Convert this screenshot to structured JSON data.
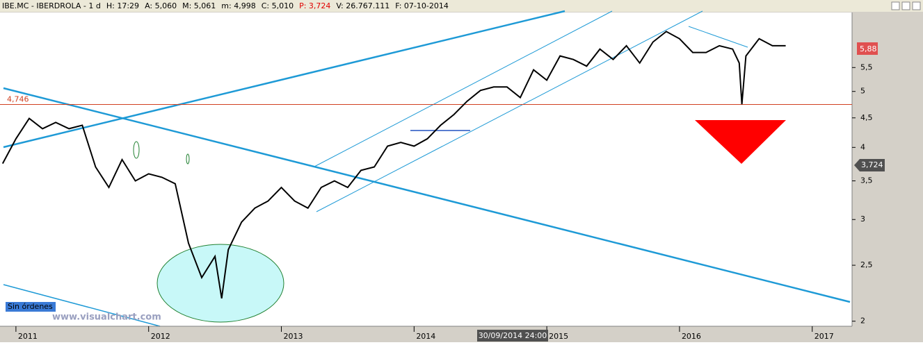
{
  "chart_data": {
    "type": "line",
    "header": [
      "IBE.MC - IBERDROLA - 1 d",
      "H: 17:29",
      "A: 5,060",
      "M: 5,061",
      "m: 4,998",
      "C: 5,010",
      "P: 3,724",
      "V: 26.767.111",
      "F: 07-10-2014"
    ],
    "x": [
      2010.9,
      2011.0,
      2011.1,
      2011.2,
      2011.3,
      2011.4,
      2011.5,
      2011.6,
      2011.7,
      2011.8,
      2011.9,
      2012.0,
      2012.1,
      2012.2,
      2012.3,
      2012.4,
      2012.5,
      2012.55,
      2012.6,
      2012.7,
      2012.8,
      2012.9,
      2013.0,
      2013.1,
      2013.2,
      2013.3,
      2013.4,
      2013.5,
      2013.6,
      2013.7,
      2013.8,
      2013.9,
      2014.0,
      2014.1,
      2014.2,
      2014.3,
      2014.4,
      2014.5,
      2014.6,
      2014.7,
      2014.8,
      2014.9,
      2015.0,
      2015.1,
      2015.2,
      2015.3,
      2015.4,
      2015.5,
      2015.6,
      2015.7,
      2015.8,
      2015.9,
      2016.0,
      2016.1,
      2016.2,
      2016.3,
      2016.4,
      2016.45,
      2016.47,
      2016.5,
      2016.6,
      2016.7,
      2016.8
    ],
    "values": [
      3.75,
      4.14,
      4.49,
      4.31,
      4.42,
      4.31,
      4.37,
      3.7,
      3.41,
      3.81,
      3.5,
      3.6,
      3.55,
      3.46,
      2.73,
      2.38,
      2.59,
      2.19,
      2.66,
      2.97,
      3.14,
      3.23,
      3.41,
      3.23,
      3.14,
      3.41,
      3.5,
      3.41,
      3.65,
      3.7,
      4.02,
      4.08,
      4.02,
      4.14,
      4.37,
      4.56,
      4.81,
      5.02,
      5.09,
      5.09,
      4.88,
      5.45,
      5.23,
      5.76,
      5.68,
      5.53,
      5.92,
      5.68,
      6.0,
      5.6,
      6.09,
      6.35,
      6.17,
      5.84,
      5.84,
      6.0,
      5.92,
      5.6,
      4.75,
      5.76,
      6.17,
      6.0,
      6.0
    ],
    "color": "#000000",
    "xlim": [
      2010.88,
      2017.3
    ],
    "xticks": [
      2011,
      2012,
      2013,
      2014,
      2015,
      2016,
      2017
    ],
    "ylim": [
      1.96,
      6.85
    ],
    "log_scale": true,
    "yticks": [
      2,
      {
        "value": 2.5,
        "label": "2,5"
      },
      3,
      {
        "value": 3.5,
        "label": "3,5"
      },
      4,
      {
        "value": 4.5,
        "label": "4,5"
      },
      5,
      {
        "value": 5.5,
        "label": "5,5"
      }
    ],
    "hline": {
      "value": 4.746,
      "label": "4,746",
      "color": "#d04020"
    },
    "price_labels": [
      "5,88",
      "3,724"
    ],
    "status": "Sin órdenes",
    "watermark": "www.visualchart.com",
    "cursor_date": "30/09/2014 24:00"
  }
}
